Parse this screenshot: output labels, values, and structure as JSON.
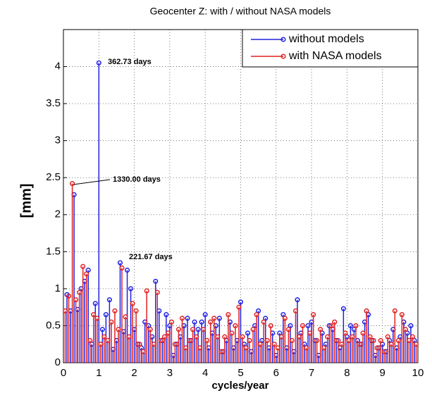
{
  "chart_data": {
    "type": "stem",
    "title": "Geocenter Z: with / without NASA models",
    "xlabel": "cycles/year",
    "ylabel": "[mm]",
    "xlim": [
      0,
      10
    ],
    "ylim": [
      0,
      4.5
    ],
    "xticks": [
      0,
      1,
      2,
      3,
      4,
      5,
      6,
      7,
      8,
      9,
      10
    ],
    "yticks": [
      0,
      0.5,
      1,
      1.5,
      2,
      2.5,
      3,
      3.5,
      4
    ],
    "grid": true,
    "legend": "upper right",
    "annotations": [
      "362.73 days",
      "1330.00 days",
      "221.67 days"
    ],
    "series": [
      {
        "name": "without models",
        "color": "#2020e0",
        "x": [
          0.1,
          0.2,
          0.3,
          0.4,
          0.5,
          0.6,
          0.7,
          0.8,
          0.9,
          1.0,
          1.1,
          1.2,
          1.3,
          1.4,
          1.5,
          1.6,
          1.7,
          1.8,
          1.9,
          2.0,
          2.1,
          2.2,
          2.3,
          2.4,
          2.5,
          2.6,
          2.7,
          2.8,
          2.9,
          3.0,
          3.1,
          3.2,
          3.3,
          3.4,
          3.5,
          3.6,
          3.7,
          3.8,
          3.9,
          4.0,
          4.1,
          4.2,
          4.3,
          4.4,
          4.5,
          4.6,
          4.7,
          4.8,
          4.9,
          5.0,
          5.1,
          5.2,
          5.3,
          5.4,
          5.5,
          5.6,
          5.7,
          5.8,
          5.9,
          6.0,
          6.1,
          6.2,
          6.3,
          6.4,
          6.5,
          6.6,
          6.7,
          6.8,
          6.9,
          7.0,
          7.1,
          7.2,
          7.3,
          7.4,
          7.5,
          7.6,
          7.7,
          7.8,
          7.9,
          8.0,
          8.1,
          8.2,
          8.3,
          8.4,
          8.5,
          8.6,
          8.7,
          8.8,
          8.9,
          9.0,
          9.1,
          9.2,
          9.3,
          9.4,
          9.5,
          9.6,
          9.7,
          9.8,
          9.9
        ],
        "values": [
          0.92,
          0.7,
          2.27,
          0.72,
          1.0,
          1.1,
          1.25,
          0.25,
          0.8,
          4.05,
          0.45,
          0.65,
          0.85,
          0.18,
          0.3,
          1.35,
          0.42,
          1.25,
          1.0,
          0.45,
          0.25,
          0.2,
          0.55,
          0.5,
          0.35,
          1.1,
          0.7,
          0.3,
          0.65,
          0.5,
          0.1,
          0.25,
          0.35,
          0.5,
          0.6,
          0.3,
          0.55,
          0.45,
          0.55,
          0.65,
          0.2,
          0.4,
          0.5,
          0.6,
          0.15,
          0.3,
          0.55,
          0.2,
          0.3,
          0.82,
          0.25,
          0.4,
          0.15,
          0.5,
          0.7,
          0.3,
          0.6,
          0.2,
          0.4,
          0.1,
          0.4,
          0.65,
          0.2,
          0.5,
          0.15,
          0.85,
          0.4,
          0.25,
          0.5,
          0.55,
          0.3,
          0.1,
          0.4,
          0.25,
          0.5,
          0.45,
          0.3,
          0.2,
          0.73,
          0.35,
          0.5,
          0.45,
          0.3,
          0.25,
          0.55,
          0.65,
          0.3,
          0.1,
          0.2,
          0.25,
          0.15,
          0.3,
          0.45,
          0.2,
          0.35,
          0.55,
          0.4,
          0.5,
          0.3
        ]
      },
      {
        "name": "with NASA models",
        "color": "#e02020",
        "x": [
          0.05,
          0.15,
          0.25,
          0.35,
          0.45,
          0.55,
          0.65,
          0.75,
          0.85,
          0.95,
          1.05,
          1.15,
          1.25,
          1.35,
          1.45,
          1.55,
          1.65,
          1.75,
          1.85,
          1.95,
          2.05,
          2.15,
          2.25,
          2.35,
          2.45,
          2.55,
          2.65,
          2.75,
          2.85,
          2.95,
          3.05,
          3.15,
          3.25,
          3.35,
          3.45,
          3.55,
          3.65,
          3.75,
          3.85,
          3.95,
          4.05,
          4.15,
          4.25,
          4.35,
          4.45,
          4.55,
          4.65,
          4.75,
          4.85,
          4.95,
          5.05,
          5.15,
          5.25,
          5.35,
          5.45,
          5.55,
          5.65,
          5.75,
          5.85,
          5.95,
          6.05,
          6.15,
          6.25,
          6.35,
          6.45,
          6.55,
          6.65,
          6.75,
          6.85,
          6.95,
          7.05,
          7.15,
          7.25,
          7.35,
          7.45,
          7.55,
          7.65,
          7.75,
          7.85,
          7.95,
          8.05,
          8.15,
          8.25,
          8.35,
          8.45,
          8.55,
          8.65,
          8.75,
          8.85,
          8.95,
          9.05,
          9.15,
          9.25,
          9.35,
          9.45,
          9.55,
          9.65,
          9.75,
          9.85,
          9.95
        ],
        "values": [
          0.7,
          0.9,
          2.42,
          0.85,
          0.95,
          1.3,
          1.2,
          0.3,
          0.65,
          0.6,
          0.25,
          0.35,
          0.3,
          0.55,
          0.7,
          0.45,
          1.28,
          0.62,
          0.35,
          0.8,
          0.7,
          0.25,
          0.15,
          0.97,
          0.45,
          0.25,
          0.95,
          0.3,
          0.35,
          0.4,
          0.55,
          0.25,
          0.45,
          0.6,
          0.2,
          0.3,
          0.45,
          0.35,
          0.2,
          0.45,
          0.3,
          0.55,
          0.6,
          0.35,
          0.15,
          0.35,
          0.65,
          0.4,
          0.5,
          0.75,
          0.35,
          0.2,
          0.3,
          0.45,
          0.65,
          0.25,
          0.55,
          0.3,
          0.5,
          0.25,
          0.2,
          0.35,
          0.6,
          0.45,
          0.3,
          0.7,
          0.35,
          0.5,
          0.2,
          0.4,
          0.65,
          0.3,
          0.45,
          0.2,
          0.35,
          0.5,
          0.55,
          0.3,
          0.25,
          0.4,
          0.3,
          0.35,
          0.5,
          0.25,
          0.4,
          0.7,
          0.35,
          0.3,
          0.2,
          0.3,
          0.15,
          0.35,
          0.25,
          0.7,
          0.3,
          0.65,
          0.45,
          0.3,
          0.35,
          0.25
        ]
      }
    ]
  }
}
